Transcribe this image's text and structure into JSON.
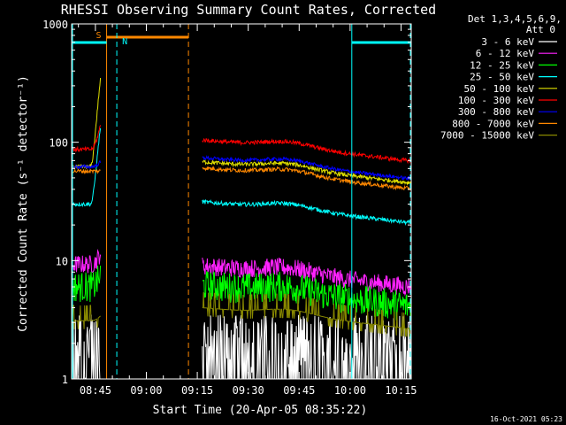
{
  "chart_data": {
    "type": "line",
    "title": "RHESSI Observing Summary Count Rates, Corrected",
    "xlabel": "Start Time (20-Apr-05 08:35:22)",
    "ylabel": "Corrected Count Rate (s⁻¹ detector⁻¹)",
    "yscale": "log",
    "ylim": [
      1,
      1000
    ],
    "xlim_minutes": [
      38,
      138
    ],
    "x_ticks": [
      {
        "label": "08:45",
        "t": 45
      },
      {
        "label": "09:00",
        "t": 60
      },
      {
        "label": "09:15",
        "t": 75
      },
      {
        "label": "09:30",
        "t": 90
      },
      {
        "label": "09:45",
        "t": 105
      },
      {
        "label": "10:00",
        "t": 120
      },
      {
        "label": "10:15",
        "t": 135
      }
    ],
    "y_ticks": [
      {
        "label": "1",
        "v": 1
      },
      {
        "label": "10",
        "v": 10
      },
      {
        "label": "100",
        "v": 100
      },
      {
        "label": "1000",
        "v": 1000
      }
    ],
    "legend_header": "Det 1,3,4,5,6,9,",
    "legend_sub": "Att 0",
    "series": [
      {
        "name": "3 - 6 keV",
        "color": "#ffffff"
      },
      {
        "name": "6 - 12 keV",
        "color": "#ff22ff"
      },
      {
        "name": "12 - 25 keV",
        "color": "#00ff00"
      },
      {
        "name": "25 - 50 keV",
        "color": "#00ffff"
      },
      {
        "name": "50 - 100 keV",
        "color": "#e0e000"
      },
      {
        "name": "100 - 300 keV",
        "color": "#ff0000"
      },
      {
        "name": "300 - 800 keV",
        "color": "#0000ff"
      },
      {
        "name": "800 - 7000 keV",
        "color": "#ff8800"
      },
      {
        "name": "7000 - 15000 keV",
        "color": "#888800"
      }
    ],
    "segments": [
      {
        "start": 38,
        "end": 46.5
      },
      {
        "start": 76.5,
        "end": 138
      }
    ],
    "annotations": {
      "saa_label": "S",
      "night_label": "N",
      "saa_start": 48.3,
      "saa_end": 72.4,
      "night_start": 51.3,
      "day_start": 120.5
    },
    "footer_timestamp": "16-Oct-2021 05:23"
  }
}
